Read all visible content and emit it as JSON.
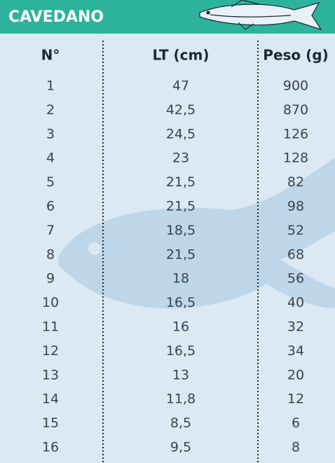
{
  "header": {
    "title": "CAVEDANO"
  },
  "table": {
    "columns": [
      "N°",
      "LT (cm)",
      "Peso (g)"
    ],
    "rows": [
      [
        "1",
        "47",
        "900"
      ],
      [
        "2",
        "42,5",
        "870"
      ],
      [
        "3",
        "24,5",
        "126"
      ],
      [
        "4",
        "23",
        "128"
      ],
      [
        "5",
        "21,5",
        "82"
      ],
      [
        "6",
        "21,5",
        "98"
      ],
      [
        "7",
        "18,5",
        "52"
      ],
      [
        "8",
        "21,5",
        "68"
      ],
      [
        "9",
        "18",
        "56"
      ],
      [
        "10",
        "16,5",
        "40"
      ],
      [
        "11",
        "16",
        "32"
      ],
      [
        "12",
        "16,5",
        "34"
      ],
      [
        "13",
        "13",
        "20"
      ],
      [
        "14",
        "11,8",
        "12"
      ],
      [
        "15",
        "8,5",
        "6"
      ],
      [
        "16",
        "9,5",
        "8"
      ]
    ]
  }
}
